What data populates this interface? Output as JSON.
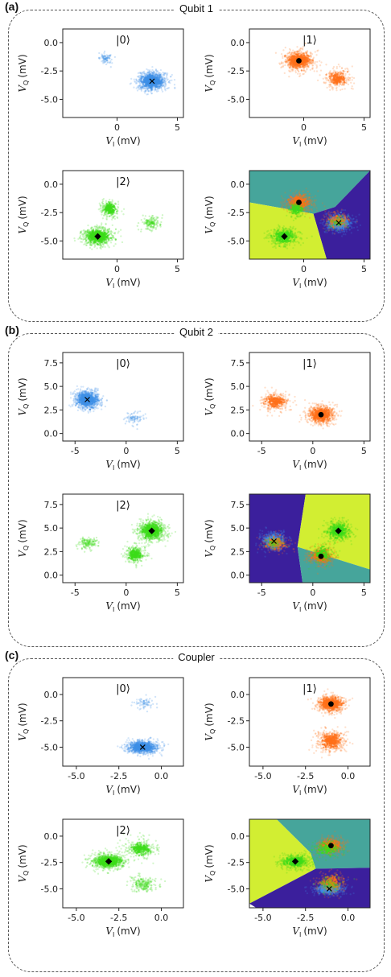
{
  "panels": [
    {
      "tag": "(a)",
      "title": "Qubit 1",
      "xlabel": "V",
      "xsub": "I",
      "ylabel": "V",
      "ysub": "Q",
      "unit": "(mV)",
      "xlim": [
        -4.5,
        5.5
      ],
      "ylim": [
        -6.6,
        1.2
      ],
      "xticks": [
        "0",
        "5"
      ],
      "xtick_values": [
        0,
        5
      ],
      "yticks": [
        "0.0",
        "-2.5",
        "-5.0"
      ],
      "ytick_values": [
        0,
        -2.5,
        -5
      ],
      "states": [
        {
          "label": "|0⟩",
          "center": [
            2.9,
            -3.4
          ],
          "marker": "x",
          "clusters": [
            {
              "cx": 2.9,
              "cy": -3.4,
              "sx": 1.1,
              "sy": 0.75,
              "n": 900
            },
            {
              "cx": -1.0,
              "cy": -1.4,
              "sx": 0.6,
              "sy": 0.5,
              "n": 60
            }
          ]
        },
        {
          "label": "|1⟩",
          "center": [
            -0.4,
            -1.6
          ],
          "marker": "o",
          "clusters": [
            {
              "cx": -0.4,
              "cy": -1.6,
              "sx": 1.1,
              "sy": 0.75,
              "n": 800
            },
            {
              "cx": 2.8,
              "cy": -3.2,
              "sx": 1.0,
              "sy": 0.8,
              "n": 260
            }
          ]
        },
        {
          "label": "|2⟩",
          "center": [
            -1.6,
            -4.6
          ],
          "marker": "D",
          "clusters": [
            {
              "cx": -1.6,
              "cy": -4.6,
              "sx": 1.1,
              "sy": 0.75,
              "n": 800
            },
            {
              "cx": -0.6,
              "cy": -2.2,
              "sx": 0.7,
              "sy": 0.7,
              "n": 250
            },
            {
              "cx": 2.8,
              "cy": -3.4,
              "sx": 0.8,
              "sy": 0.6,
              "n": 120
            }
          ]
        }
      ],
      "regions": [
        {
          "color": "#46a59b",
          "polygon": [
            [
              -4.5,
              1.2
            ],
            [
              5.5,
              1.2
            ],
            [
              2.6,
              -2.0
            ],
            [
              0.8,
              -2.6
            ],
            [
              -4.5,
              -1.6
            ]
          ]
        },
        {
          "color": "#3b1f9c",
          "polygon": [
            [
              5.5,
              1.2
            ],
            [
              5.5,
              -6.6
            ],
            [
              1.9,
              -6.6
            ],
            [
              0.8,
              -2.6
            ],
            [
              2.6,
              -2.0
            ]
          ]
        },
        {
          "color": "#d2ee32",
          "polygon": [
            [
              -4.5,
              -1.6
            ],
            [
              0.8,
              -2.6
            ],
            [
              1.9,
              -6.6
            ],
            [
              -4.5,
              -6.6
            ]
          ]
        }
      ]
    },
    {
      "tag": "(b)",
      "title": "Qubit 2",
      "xlabel": "V",
      "xsub": "I",
      "ylabel": "V",
      "ysub": "Q",
      "unit": "(mV)",
      "xlim": [
        -6.2,
        5.6
      ],
      "ylim": [
        -0.8,
        8.6
      ],
      "xticks": [
        "-5",
        "0",
        "5"
      ],
      "xtick_values": [
        -5,
        0,
        5
      ],
      "yticks": [
        "7.5",
        "5.0",
        "2.5",
        "0.0"
      ],
      "ytick_values": [
        7.5,
        5,
        2.5,
        0
      ],
      "states": [
        {
          "label": "|0⟩",
          "center": [
            -3.8,
            3.6
          ],
          "marker": "x",
          "clusters": [
            {
              "cx": -3.8,
              "cy": 3.6,
              "sx": 1.1,
              "sy": 0.9,
              "n": 900
            },
            {
              "cx": 0.8,
              "cy": 1.6,
              "sx": 0.9,
              "sy": 0.6,
              "n": 60
            }
          ]
        },
        {
          "label": "|1⟩",
          "center": [
            0.8,
            2.0
          ],
          "marker": "o",
          "clusters": [
            {
              "cx": 0.8,
              "cy": 2.0,
              "sx": 1.2,
              "sy": 0.9,
              "n": 800
            },
            {
              "cx": -3.6,
              "cy": 3.4,
              "sx": 1.3,
              "sy": 0.9,
              "n": 320
            }
          ]
        },
        {
          "label": "|2⟩",
          "center": [
            2.5,
            4.7
          ],
          "marker": "D",
          "clusters": [
            {
              "cx": 2.5,
              "cy": 4.7,
              "sx": 1.2,
              "sy": 1.0,
              "n": 800
            },
            {
              "cx": 0.9,
              "cy": 2.2,
              "sx": 1.0,
              "sy": 0.9,
              "n": 300
            },
            {
              "cx": -3.8,
              "cy": 3.4,
              "sx": 0.9,
              "sy": 0.6,
              "n": 110
            }
          ]
        }
      ],
      "regions": [
        {
          "color": "#3b1f9c",
          "polygon": [
            [
              -6.2,
              8.6
            ],
            [
              -0.7,
              8.6
            ],
            [
              -1.5,
              3.0
            ],
            [
              -1.0,
              -0.8
            ],
            [
              -6.2,
              -0.8
            ]
          ]
        },
        {
          "color": "#d2ee32",
          "polygon": [
            [
              -0.7,
              8.6
            ],
            [
              5.6,
              8.6
            ],
            [
              5.6,
              0.6
            ],
            [
              -1.5,
              3.0
            ]
          ]
        },
        {
          "color": "#46a59b",
          "polygon": [
            [
              -1.5,
              3.0
            ],
            [
              5.6,
              0.6
            ],
            [
              5.6,
              -0.8
            ],
            [
              -1.0,
              -0.8
            ]
          ]
        }
      ]
    },
    {
      "tag": "(c)",
      "title": "Coupler",
      "xlabel": "V",
      "xsub": "I",
      "ylabel": "V",
      "ysub": "Q",
      "unit": "(mV)",
      "xlim": [
        -5.8,
        1.3
      ],
      "ylim": [
        -6.8,
        1.6
      ],
      "xticks": [
        "-5.0",
        "-2.5",
        "0.0"
      ],
      "xtick_values": [
        -5,
        -2.5,
        0
      ],
      "yticks": [
        "0.0",
        "-2.5",
        "-5.0"
      ],
      "ytick_values": [
        0,
        -2.5,
        -5
      ],
      "states": [
        {
          "label": "|0⟩",
          "center": [
            -1.1,
            -5.0
          ],
          "marker": "x",
          "clusters": [
            {
              "cx": -1.1,
              "cy": -5.0,
              "sx": 0.85,
              "sy": 0.55,
              "n": 900
            },
            {
              "cx": -1.0,
              "cy": -0.8,
              "sx": 0.6,
              "sy": 0.6,
              "n": 50
            }
          ]
        },
        {
          "label": "|1⟩",
          "center": [
            -1.0,
            -0.9
          ],
          "marker": "o",
          "clusters": [
            {
              "cx": -1.0,
              "cy": -0.9,
              "sx": 0.75,
              "sy": 0.75,
              "n": 700
            },
            {
              "cx": -1.0,
              "cy": -4.4,
              "sx": 0.8,
              "sy": 1.0,
              "n": 420
            }
          ]
        },
        {
          "label": "|2⟩",
          "center": [
            -3.1,
            -2.4
          ],
          "marker": "D",
          "clusters": [
            {
              "cx": -3.1,
              "cy": -2.4,
              "sx": 0.9,
              "sy": 0.65,
              "n": 800
            },
            {
              "cx": -1.2,
              "cy": -1.2,
              "sx": 0.9,
              "sy": 0.8,
              "n": 280
            },
            {
              "cx": -1.1,
              "cy": -4.6,
              "sx": 0.7,
              "sy": 0.7,
              "n": 160
            }
          ]
        }
      ],
      "regions": [
        {
          "color": "#46a59b",
          "polygon": [
            [
              -4.2,
              1.6
            ],
            [
              1.3,
              1.6
            ],
            [
              1.3,
              -3.0
            ],
            [
              -1.9,
              -3.1
            ],
            [
              -2.2,
              -1.6
            ]
          ]
        },
        {
          "color": "#d2ee32",
          "polygon": [
            [
              -5.8,
              1.6
            ],
            [
              -4.2,
              1.6
            ],
            [
              -2.2,
              -1.6
            ],
            [
              -1.9,
              -3.1
            ],
            [
              -5.8,
              -6.4
            ]
          ]
        },
        {
          "color": "#3b1f9c",
          "polygon": [
            [
              -1.9,
              -3.1
            ],
            [
              1.3,
              -3.0
            ],
            [
              1.3,
              -6.8
            ],
            [
              -5.4,
              -6.8
            ],
            [
              -5.8,
              -6.4
            ]
          ]
        }
      ]
    }
  ],
  "colors": {
    "state0": "#3d8fe6",
    "state1": "#ff7019",
    "state2": "#3cdc19",
    "marker": "#000000"
  }
}
